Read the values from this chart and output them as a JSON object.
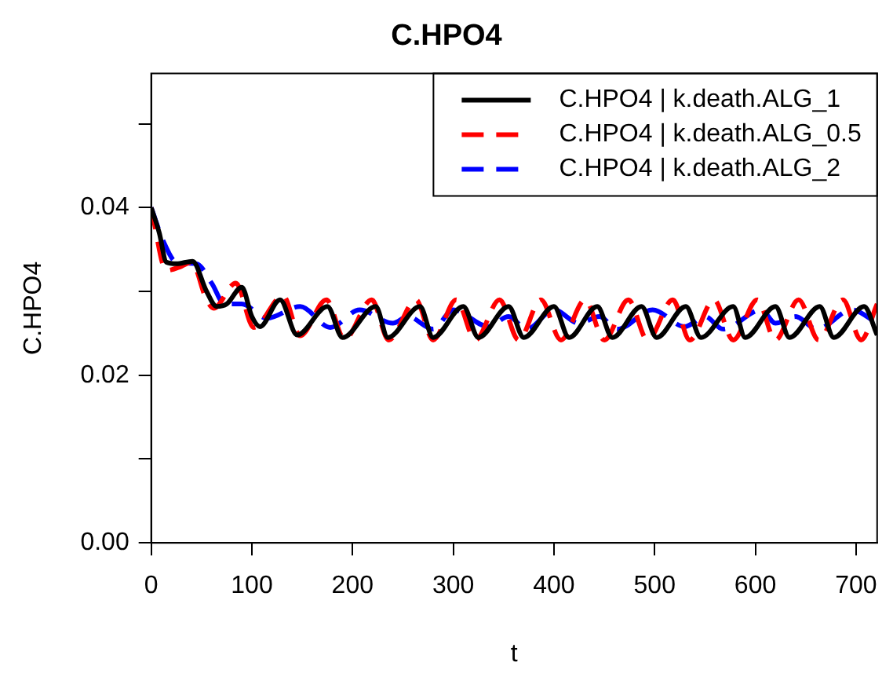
{
  "chart_data": {
    "type": "line",
    "title": "C.HPO4",
    "xlabel": "t",
    "ylabel": "C.HPO4",
    "xlim": [
      0,
      721
    ],
    "xticks": [
      0,
      100,
      200,
      300,
      400,
      500,
      600,
      700
    ],
    "ylim": [
      0,
      0.056
    ],
    "yticks": [
      {
        "value": 0,
        "label": "0.00"
      },
      {
        "value": 0.01,
        "label": null
      },
      0.02,
      {
        "value": 0.03,
        "label": null
      },
      0.04,
      {
        "value": 0.05,
        "label": null
      }
    ],
    "grid": false,
    "legend": "top right",
    "marker": "none",
    "series": [
      {
        "name": "C.HPO4 | k.death.ALG_1",
        "color": "#000000",
        "line_style": "solid",
        "x": [
          0,
          8,
          15,
          25,
          41,
          55,
          65,
          75,
          90,
          100,
          108,
          128,
          145,
          175,
          190,
          223,
          235,
          267,
          280,
          310,
          325,
          355,
          370,
          400,
          415,
          443,
          458,
          487,
          502,
          531,
          546,
          578,
          590,
          620,
          634,
          664,
          678,
          708,
          721
        ],
        "values": [
          0.04,
          0.037,
          0.0335,
          0.0333,
          0.0336,
          0.03,
          0.0282,
          0.0285,
          0.0305,
          0.027,
          0.0258,
          0.029,
          0.0248,
          0.0282,
          0.0245,
          0.0282,
          0.0245,
          0.0282,
          0.0245,
          0.0282,
          0.0245,
          0.0282,
          0.0245,
          0.0282,
          0.0245,
          0.0282,
          0.0245,
          0.0282,
          0.0245,
          0.0282,
          0.0245,
          0.0282,
          0.0245,
          0.0282,
          0.0245,
          0.0282,
          0.0245,
          0.0282,
          0.0248
        ]
      },
      {
        "name": "C.HPO4 | k.death.ALG_0.5",
        "color": "#ff0000",
        "line_style": "dashed",
        "x": [
          0,
          15,
          30,
          40,
          55,
          62,
          84,
          102,
          131,
          148,
          174,
          192,
          219,
          236,
          263,
          280,
          303,
          322,
          346,
          365,
          387,
          407,
          431,
          450,
          474,
          493,
          518,
          535,
          559,
          578,
          602,
          620,
          643,
          663,
          687,
          705,
          721
        ],
        "values": [
          0.04,
          0.0325,
          0.033,
          0.0335,
          0.029,
          0.028,
          0.031,
          0.0257,
          0.0295,
          0.0247,
          0.029,
          0.0243,
          0.029,
          0.0242,
          0.029,
          0.0242,
          0.029,
          0.0242,
          0.029,
          0.0242,
          0.029,
          0.0242,
          0.029,
          0.0242,
          0.029,
          0.0242,
          0.029,
          0.0242,
          0.029,
          0.0242,
          0.029,
          0.0242,
          0.029,
          0.0242,
          0.029,
          0.0242,
          0.0285
        ]
      },
      {
        "name": "C.HPO4 | k.death.ALG_2",
        "color": "#0000ff",
        "line_style": "dashed",
        "x": [
          0,
          12,
          25,
          45,
          60,
          73,
          90,
          115,
          148,
          178,
          207,
          240,
          255,
          280,
          300,
          335,
          355,
          373,
          400,
          425,
          445,
          463,
          498,
          530,
          550,
          568,
          606,
          620,
          640,
          661,
          696,
          721
        ],
        "values": [
          0.04,
          0.036,
          0.0335,
          0.0333,
          0.031,
          0.0285,
          0.0285,
          0.0268,
          0.0282,
          0.0257,
          0.0278,
          0.0262,
          0.027,
          0.0255,
          0.0278,
          0.0258,
          0.027,
          0.0255,
          0.0278,
          0.0262,
          0.027,
          0.0255,
          0.0278,
          0.0258,
          0.027,
          0.0255,
          0.0278,
          0.0262,
          0.027,
          0.0255,
          0.0278,
          0.0262
        ]
      }
    ]
  }
}
